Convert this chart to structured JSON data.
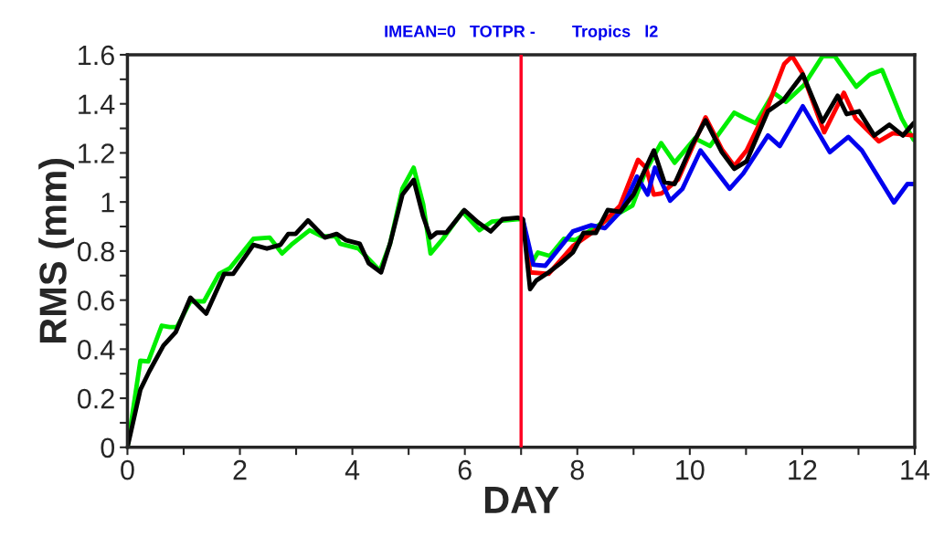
{
  "chart_data": {
    "type": "line",
    "title": "IMEAN=0   TOTPR -        Tropics   l2",
    "xlabel": "DAY",
    "ylabel": "RMS (mm)",
    "xlim": [
      0,
      14
    ],
    "ylim": [
      0,
      1.6
    ],
    "xticks": [
      0,
      {
        "value": 1,
        "label": null
      },
      2,
      {
        "value": 3,
        "label": null
      },
      4,
      {
        "value": 5,
        "label": null
      },
      6,
      {
        "value": 7,
        "label": null
      },
      8,
      {
        "value": 9,
        "label": null
      },
      10,
      {
        "value": 11,
        "label": null
      },
      12,
      {
        "value": 13,
        "label": null
      },
      14
    ],
    "yticks": [
      0,
      {
        "value": 0.1,
        "label": null
      },
      0.2,
      {
        "value": 0.3,
        "label": null
      },
      0.4,
      {
        "value": 0.5,
        "label": null
      },
      0.6,
      {
        "value": 0.7,
        "label": null
      },
      0.8,
      {
        "value": 0.9,
        "label": null
      },
      1,
      {
        "value": 1.1,
        "label": null
      },
      1.2,
      {
        "value": 1.3,
        "label": null
      },
      1.4,
      {
        "value": 1.5,
        "label": null
      },
      1.6
    ],
    "grid": false,
    "legend": false,
    "line_style": "solid",
    "ref_lines": [
      {
        "axis": "x",
        "value": 7,
        "color": "#ff0022",
        "line_style": "solid"
      }
    ],
    "series": [
      {
        "color": "#00ee00",
        "x": [
          0,
          0.23,
          0.37,
          0.61,
          0.75,
          0.88,
          1.12,
          1.36,
          1.63,
          1.82,
          2.24,
          2.53,
          2.75,
          2.91,
          3.24,
          3.46,
          3.7,
          3.78,
          4.11,
          4.49,
          4.67,
          4.89,
          5.09,
          5.26,
          5.39,
          5.61,
          5.96,
          6.26,
          6.48,
          6.94,
          7.03,
          7.16,
          7.3,
          7.51,
          7.76,
          7.97,
          8.46,
          8.98,
          9.22,
          9.49,
          9.73,
          10.09,
          10.36,
          10.79,
          10.95,
          11.17,
          11.49,
          11.71,
          12.03,
          12.36,
          12.58,
          12.96,
          13.2,
          13.42,
          13.77,
          13.98
        ],
        "values": [
          0,
          0.353,
          0.35,
          0.496,
          0.49,
          0.49,
          0.595,
          0.595,
          0.707,
          0.73,
          0.85,
          0.855,
          0.79,
          0.825,
          0.885,
          0.86,
          0.86,
          0.83,
          0.81,
          0.72,
          0.83,
          1.055,
          1.14,
          0.99,
          0.79,
          0.85,
          0.96,
          0.885,
          0.92,
          0.93,
          0.93,
          0.74,
          0.794,
          0.78,
          0.85,
          0.845,
          0.918,
          0.985,
          1.129,
          1.24,
          1.16,
          1.259,
          1.228,
          1.364,
          1.345,
          1.321,
          1.445,
          1.408,
          1.476,
          1.594,
          1.594,
          1.47,
          1.519,
          1.538,
          1.34,
          1.253
        ]
      },
      {
        "color": "#ff0000",
        "x": [
          7.03,
          7.16,
          7.49,
          7.92,
          8.33,
          8.76,
          9.08,
          9.22,
          9.36,
          9.5,
          9.79,
          10.28,
          10.57,
          10.79,
          11.01,
          11.39,
          11.68,
          11.82,
          12.0,
          12.39,
          12.74,
          12.95,
          13.36,
          13.61,
          13.98
        ],
        "values": [
          0.93,
          0.713,
          0.707,
          0.82,
          0.886,
          0.985,
          1.172,
          1.14,
          1.03,
          1.035,
          1.091,
          1.345,
          1.215,
          1.147,
          1.21,
          1.39,
          1.563,
          1.594,
          1.526,
          1.284,
          1.445,
          1.34,
          1.247,
          1.28,
          1.271
        ]
      },
      {
        "color": "#0000ee",
        "x": [
          7.03,
          7.22,
          7.43,
          7.92,
          8.25,
          8.49,
          8.79,
          9.06,
          9.25,
          9.38,
          9.65,
          9.87,
          10.19,
          10.71,
          10.95,
          11.39,
          11.6,
          12.01,
          12.49,
          12.82,
          13.06,
          13.63,
          13.87,
          13.98
        ],
        "values": [
          0.93,
          0.744,
          0.74,
          0.88,
          0.905,
          0.893,
          0.967,
          1.104,
          1.03,
          1.14,
          1.005,
          1.054,
          1.21,
          1.054,
          1.116,
          1.271,
          1.228,
          1.39,
          1.203,
          1.265,
          1.21,
          0.998,
          1.073,
          1.073
        ]
      },
      {
        "color": "#000000",
        "x": [
          0,
          0.23,
          0.39,
          0.64,
          0.86,
          1.12,
          1.4,
          1.72,
          1.88,
          2.24,
          2.48,
          2.72,
          2.86,
          2.99,
          3.21,
          3.51,
          3.72,
          3.88,
          4.13,
          4.29,
          4.51,
          4.67,
          4.89,
          5.09,
          5.26,
          5.39,
          5.5,
          5.67,
          5.99,
          6.23,
          6.46,
          6.67,
          6.94,
          7.03,
          7.16,
          7.27,
          7.49,
          7.7,
          7.92,
          8.11,
          8.33,
          8.54,
          8.76,
          9.0,
          9.22,
          9.36,
          9.55,
          9.73,
          10.03,
          10.28,
          10.57,
          10.79,
          11.01,
          11.39,
          11.66,
          12.01,
          12.36,
          12.63,
          12.79,
          13.01,
          13.28,
          13.55,
          13.79,
          13.98
        ],
        "values": [
          0,
          0.235,
          0.31,
          0.415,
          0.47,
          0.61,
          0.545,
          0.707,
          0.707,
          0.825,
          0.81,
          0.825,
          0.87,
          0.87,
          0.925,
          0.855,
          0.87,
          0.845,
          0.83,
          0.75,
          0.713,
          0.83,
          1.03,
          1.09,
          0.94,
          0.855,
          0.875,
          0.875,
          0.967,
          0.918,
          0.88,
          0.93,
          0.936,
          0.93,
          0.645,
          0.68,
          0.713,
          0.75,
          0.794,
          0.874,
          0.874,
          0.967,
          0.96,
          1.03,
          1.14,
          1.21,
          1.08,
          1.073,
          1.228,
          1.333,
          1.203,
          1.135,
          1.166,
          1.37,
          1.414,
          1.52,
          1.327,
          1.433,
          1.358,
          1.37,
          1.271,
          1.315,
          1.271,
          1.321
        ]
      }
    ]
  }
}
